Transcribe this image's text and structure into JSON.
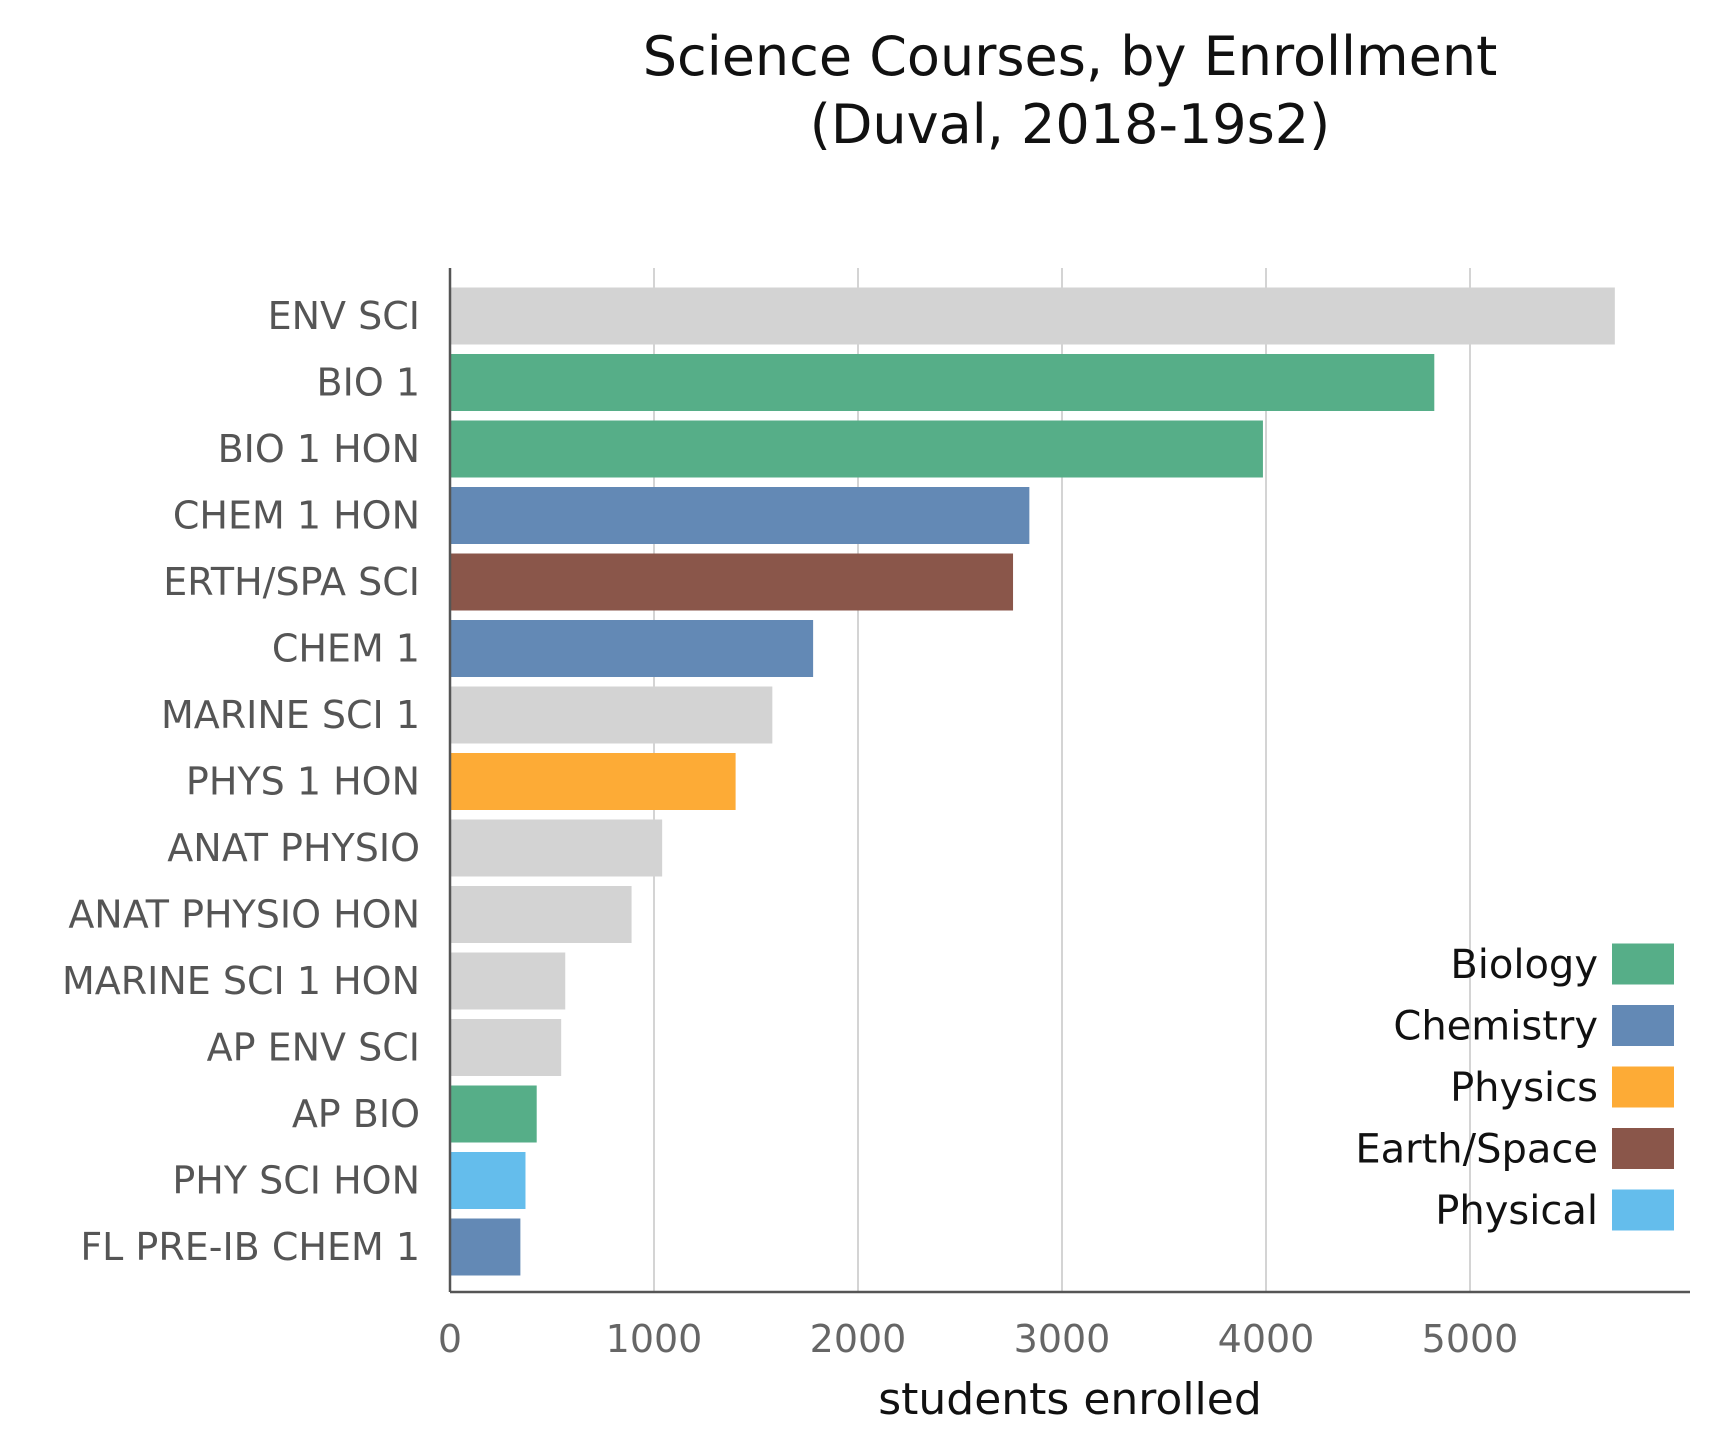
{
  "chart_data": {
    "type": "bar",
    "orientation": "horizontal",
    "title_lines": [
      "Science Courses, by Enrollment",
      "(Duval, 2018-19s2)"
    ],
    "xlabel": "students enrolled",
    "ylabel": "",
    "xlim": [
      0,
      6000
    ],
    "xticks": [
      0,
      1000,
      2000,
      3000,
      4000,
      5000
    ],
    "xtick_labels": [
      "0",
      "1000",
      "2000",
      "3000",
      "4000",
      "5000"
    ],
    "grid": "vertical",
    "legend_position": "bottom-right",
    "categories": [
      "ENV SCI",
      "BIO 1",
      "BIO 1 HON",
      "CHEM 1 HON",
      "ERTH/SPA SCI",
      "CHEM 1",
      "MARINE SCI 1",
      "PHYS 1 HON",
      "ANAT PHYSIO",
      "ANAT PHYSIO HON",
      "MARINE SCI 1 HON",
      "AP ENV SCI",
      "AP BIO",
      "PHY SCI HON",
      "FL PRE-IB CHEM 1"
    ],
    "values": [
      5710,
      4825,
      3985,
      2840,
      2760,
      1780,
      1580,
      1400,
      1040,
      890,
      565,
      545,
      425,
      370,
      345
    ],
    "bar_groups": [
      "Other",
      "Biology",
      "Biology",
      "Chemistry",
      "Earth/Space",
      "Chemistry",
      "Other",
      "Physics",
      "Other",
      "Other",
      "Other",
      "Other",
      "Biology",
      "Physical",
      "Chemistry"
    ],
    "legend": [
      {
        "name": "Biology",
        "color": "#56ae88"
      },
      {
        "name": "Chemistry",
        "color": "#6389b5"
      },
      {
        "name": "Physics",
        "color": "#fdab36"
      },
      {
        "name": "Earth/Space",
        "color": "#8a564a"
      },
      {
        "name": "Physical",
        "color": "#64bdec"
      }
    ],
    "colors": {
      "Other": "#d3d3d3",
      "axis": "#555555",
      "grid": "#aaaaaa"
    }
  }
}
